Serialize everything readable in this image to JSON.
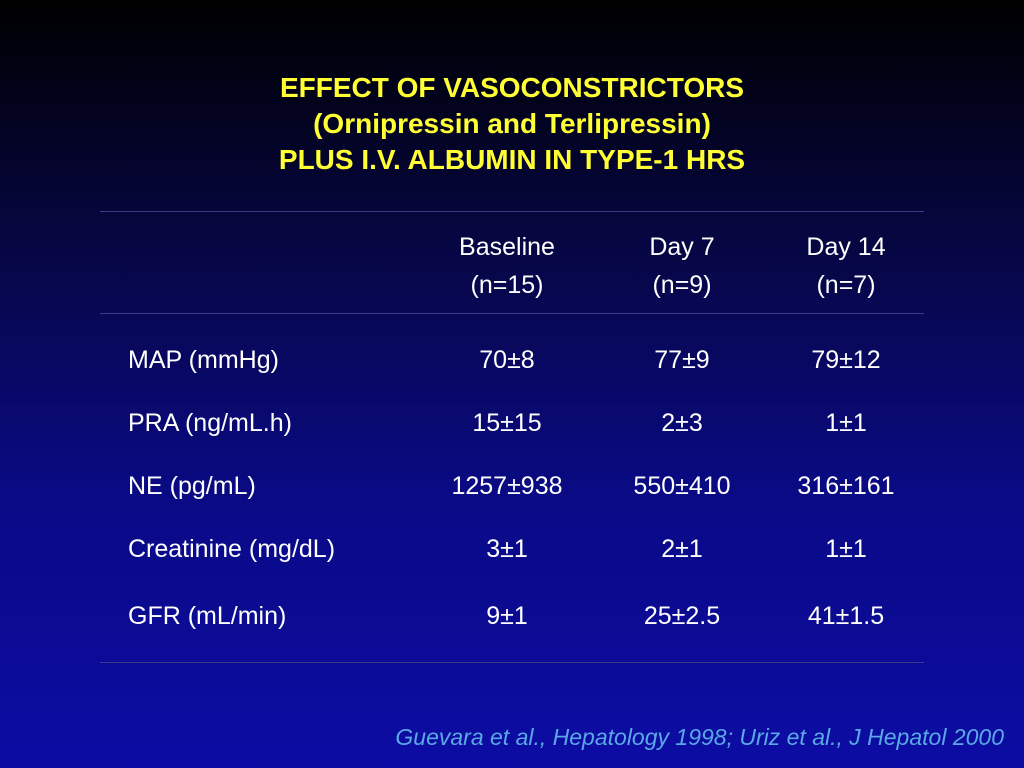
{
  "title": {
    "line1": "EFFECT OF VASOCONSTRICTORS",
    "line2": "(Ornipressin and Terlipressin)",
    "line3": "PLUS I.V. ALBUMIN IN TYPE-1 HRS"
  },
  "table": {
    "columns": [
      {
        "label": "Baseline",
        "n": "(n=15)"
      },
      {
        "label": "Day 7",
        "n": "(n=9)"
      },
      {
        "label": "Day 14",
        "n": "(n=7)"
      }
    ],
    "rows": [
      {
        "label": "MAP (mmHg)",
        "values": [
          "70±8",
          "77±9",
          "79±12"
        ]
      },
      {
        "label": "PRA (ng/mL.h)",
        "values": [
          "15±15",
          "2±3",
          "1±1"
        ]
      },
      {
        "label": "NE (pg/mL)",
        "values": [
          "1257±938",
          "550±410",
          "316±161"
        ]
      },
      {
        "label": "Creatinine (mg/dL)",
        "values": [
          "3±1",
          "2±1",
          "1±1"
        ]
      },
      {
        "label": "GFR (mL/min)",
        "values": [
          "9±1",
          "25±2.5",
          "41±1.5"
        ]
      }
    ]
  },
  "citation": "Guevara et al., Hepatology 1998; Uriz et al., J Hepatol 2000",
  "colors": {
    "title": "#ffff33",
    "text": "#ffffff",
    "citation": "#5aa8e6",
    "background_top": "#000000",
    "background_bottom": "#0c0ca4"
  }
}
